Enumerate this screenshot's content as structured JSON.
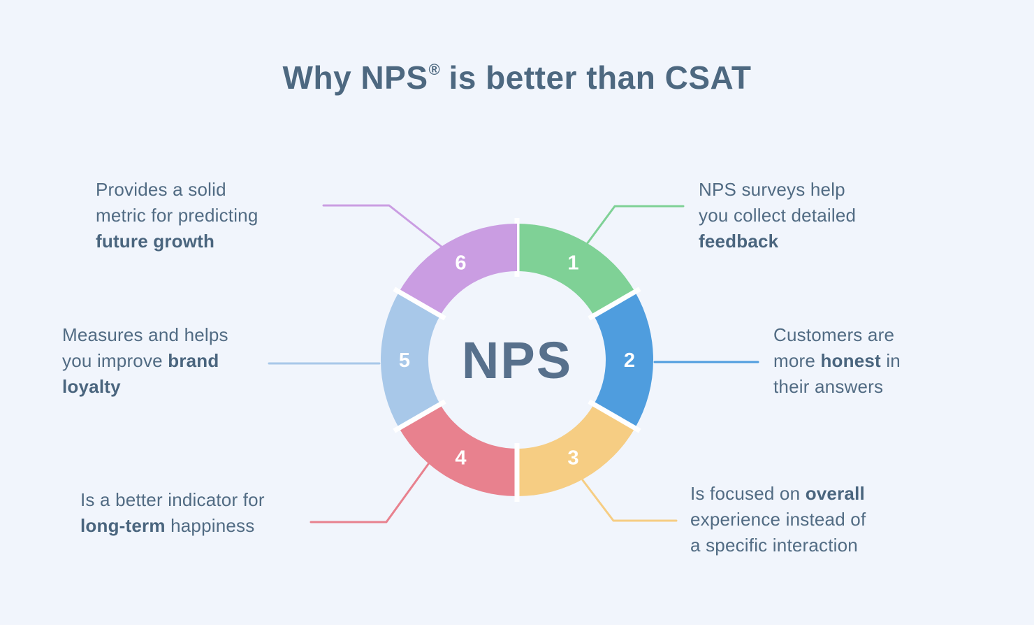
{
  "title": {
    "prefix": "Why NPS",
    "registered_mark": "®",
    "suffix": " is better than CSAT"
  },
  "center_label": "NPS",
  "colors": {
    "background": "#f1f5fc",
    "title_text": "#4d6880",
    "body_text": "#516b83",
    "center_text": "#57708c",
    "segment_gap": "#ffffff"
  },
  "segments": [
    {
      "number": "1",
      "color": "#7fd196",
      "callout_lines": [
        [
          {
            "text": "NPS surveys help"
          }
        ],
        [
          {
            "text": "you collect detailed"
          }
        ],
        [
          {
            "text": "feedback",
            "bold": true
          }
        ]
      ]
    },
    {
      "number": "2",
      "color": "#4f9dde",
      "callout_lines": [
        [
          {
            "text": "Customers are"
          }
        ],
        [
          {
            "text": "more "
          },
          {
            "text": "honest",
            "bold": true
          },
          {
            "text": " in"
          }
        ],
        [
          {
            "text": "their answers"
          }
        ]
      ]
    },
    {
      "number": "3",
      "color": "#f6cd83",
      "callout_lines": [
        [
          {
            "text": "Is focused on "
          },
          {
            "text": "overall",
            "bold": true
          }
        ],
        [
          {
            "text": "experience instead of"
          }
        ],
        [
          {
            "text": "a specific interaction"
          }
        ]
      ]
    },
    {
      "number": "4",
      "color": "#e8818e",
      "callout_lines": [
        [
          {
            "text": "Is a better indicator for"
          }
        ],
        [
          {
            "text": "long-term",
            "bold": true
          },
          {
            "text": " happiness"
          }
        ]
      ]
    },
    {
      "number": "5",
      "color": "#a8c8e9",
      "callout_lines": [
        [
          {
            "text": "Measures and helps"
          }
        ],
        [
          {
            "text": "you improve "
          },
          {
            "text": "brand",
            "bold": true
          }
        ],
        [
          {
            "text": "loyalty",
            "bold": true
          }
        ]
      ]
    },
    {
      "number": "6",
      "color": "#ca9de2",
      "callout_lines": [
        [
          {
            "text": "Provides a solid"
          }
        ],
        [
          {
            "text": "metric for predicting"
          }
        ],
        [
          {
            "text": "future growth",
            "bold": true
          }
        ]
      ]
    }
  ]
}
